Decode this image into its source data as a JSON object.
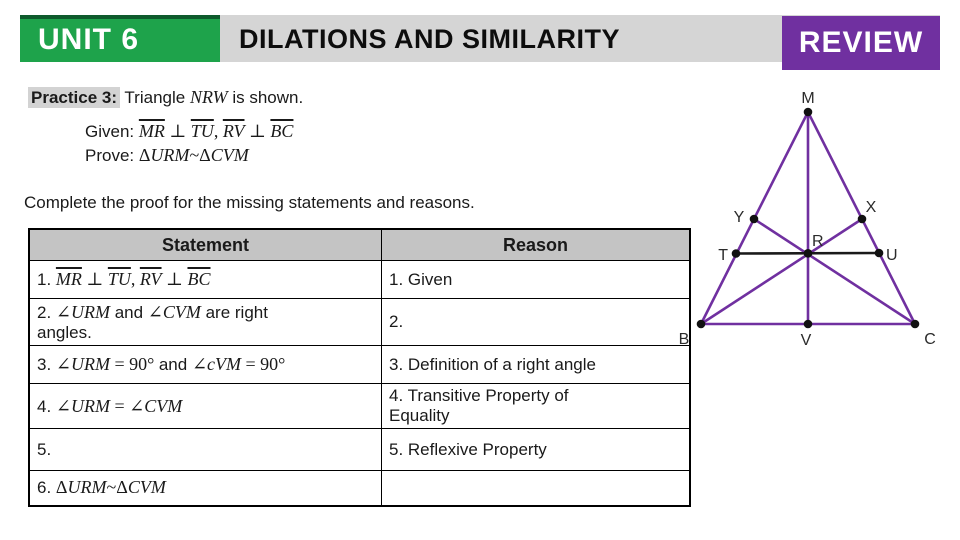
{
  "header": {
    "unit": "UNIT 6",
    "title": "DILATIONS AND SIMILARITY",
    "badge": "REVIEW"
  },
  "colors": {
    "green": "#1EA34B",
    "green_dark": "#0E5B2C",
    "purple": "#7030A0",
    "header_gray": "#D5D5D5",
    "table_header_gray": "#C4C4C4",
    "highlight_gray": "#D3D3D3",
    "diagram_line_purple": "#7030A0",
    "diagram_line_black": "#1A1A1A"
  },
  "practice": {
    "label": "Practice 3:",
    "intro": [
      {
        "k": "t",
        "v": "Triangle "
      },
      {
        "k": "m",
        "v": "NRW"
      },
      {
        "k": "t",
        "v": " is shown."
      }
    ],
    "given": [
      {
        "k": "t",
        "v": "Given: "
      },
      {
        "k": "o",
        "v": "MR"
      },
      {
        "k": "s",
        "v": " ⊥ "
      },
      {
        "k": "o",
        "v": "TU"
      },
      {
        "k": "s",
        "v": ", "
      },
      {
        "k": "o",
        "v": "RV"
      },
      {
        "k": "s",
        "v": " ⊥ "
      },
      {
        "k": "o",
        "v": "BC"
      }
    ],
    "prove": [
      {
        "k": "t",
        "v": "Prove: "
      },
      {
        "k": "s",
        "v": "Δ"
      },
      {
        "k": "m",
        "v": "URM"
      },
      {
        "k": "s",
        "v": "~Δ"
      },
      {
        "k": "m",
        "v": "CVM"
      }
    ],
    "instruction": "Complete the proof for the missing statements and reasons."
  },
  "table": {
    "headers": [
      "Statement",
      "Reason"
    ],
    "rows": [
      {
        "statement": [
          {
            "k": "t",
            "v": "1. "
          },
          {
            "k": "o",
            "v": "MR"
          },
          {
            "k": "s",
            "v": " ⊥ "
          },
          {
            "k": "o",
            "v": "TU"
          },
          {
            "k": "s",
            "v": ", "
          },
          {
            "k": "o",
            "v": "RV"
          },
          {
            "k": "s",
            "v": " ⊥ "
          },
          {
            "k": "o",
            "v": "BC"
          }
        ],
        "reason": [
          {
            "k": "t",
            "v": "1. Given"
          }
        ]
      },
      {
        "statement": [
          {
            "k": "t",
            "v": "2. "
          },
          {
            "k": "m",
            "v": "∠URM"
          },
          {
            "k": "t",
            "v": " and "
          },
          {
            "k": "m",
            "v": "∠CVM"
          },
          {
            "k": "t",
            "v": " are right"
          },
          {
            "k": "br"
          },
          {
            "k": "t",
            "v": "angles."
          }
        ],
        "reason": [
          {
            "k": "t",
            "v": "2."
          }
        ]
      },
      {
        "statement": [
          {
            "k": "t",
            "v": "3. "
          },
          {
            "k": "m",
            "v": "∠URM"
          },
          {
            "k": "s",
            "v": " = 90° "
          },
          {
            "k": "t",
            "v": "and "
          },
          {
            "k": "m",
            "v": "∠cVM"
          },
          {
            "k": "s",
            "v": " = 90°"
          }
        ],
        "reason": [
          {
            "k": "t",
            "v": "3. Definition of a right angle"
          }
        ]
      },
      {
        "statement": [
          {
            "k": "t",
            "v": "4. "
          },
          {
            "k": "m",
            "v": "∠URM"
          },
          {
            "k": "s",
            "v": " = "
          },
          {
            "k": "m",
            "v": "∠CVM"
          }
        ],
        "reason": [
          {
            "k": "t",
            "v": "4. Transitive Property of"
          },
          {
            "k": "br"
          },
          {
            "k": "t",
            "v": "Equality"
          }
        ]
      },
      {
        "statement": [
          {
            "k": "t",
            "v": "5."
          }
        ],
        "reason": [
          {
            "k": "t",
            "v": "5. Reflexive Property"
          }
        ]
      },
      {
        "statement": [
          {
            "k": "t",
            "v": "6. "
          },
          {
            "k": "s",
            "v": "Δ"
          },
          {
            "k": "m",
            "v": "URM"
          },
          {
            "k": "s",
            "v": "~Δ"
          },
          {
            "k": "m",
            "v": "CVM"
          }
        ],
        "reason": [
          {
            "k": "t",
            "v": ""
          }
        ]
      }
    ]
  },
  "diagram": {
    "labels": {
      "M": "M",
      "Y": "Y",
      "X": "X",
      "T": "T",
      "R": "R",
      "U": "U",
      "B": "B",
      "V": "V",
      "C": "C"
    }
  }
}
